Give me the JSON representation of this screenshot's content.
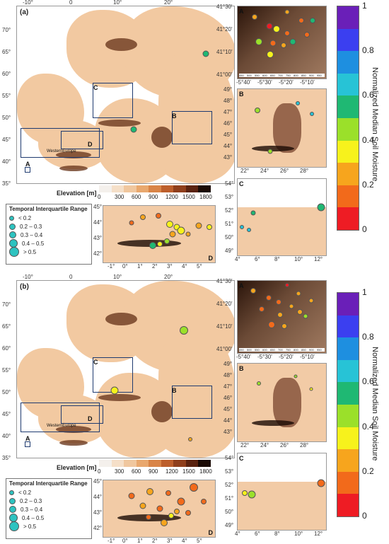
{
  "panels": [
    {
      "label": "(a)",
      "main_ticks_top": [
        "-10°",
        "0",
        "10°",
        "20°"
      ],
      "main_ticks_left": [
        "70°",
        "65°",
        "60°",
        "55°",
        "50°",
        "45°",
        "40°",
        "35°"
      ],
      "region_labels": {
        "A": "A",
        "B": "B",
        "C": "C",
        "D": "D",
        "we": "WesternEurope"
      },
      "elevation_title": "Elevation [m]",
      "elevation_ticks": [
        "0",
        "300",
        "600",
        "900",
        "1200",
        "1500",
        "1800"
      ],
      "legend_title": "Temporal Interquartile Range",
      "legend_items": [
        "< 0.2",
        "0.2 – 0.3",
        "0.3 – 0.4",
        "0.4 – 0.5",
        "> 0.5"
      ],
      "insetA": {
        "letter": "A",
        "left": [
          "41°30'",
          "41°20'",
          "41°10'",
          "41°00'"
        ],
        "bottom": [
          "-5°40'",
          "-5°30'",
          "-5°20'",
          "-5°10'"
        ],
        "scale": [
          "450",
          "500",
          "550",
          "600",
          "650",
          "700",
          "750",
          "800",
          "850",
          "900",
          "950"
        ]
      },
      "insetB": {
        "letter": "B",
        "left": [
          "49°",
          "48°",
          "47°",
          "46°",
          "45°",
          "44°",
          "43°"
        ],
        "bottom": [
          "22°",
          "24°",
          "26°",
          "28°"
        ]
      },
      "insetC": {
        "letter": "C",
        "left": [
          "54°",
          "53°",
          "52°",
          "51°",
          "50°",
          "49°"
        ],
        "bottom": [
          "4°",
          "6°",
          "8°",
          "10°",
          "12°"
        ]
      },
      "insetD": {
        "letter": "D",
        "left": [
          "45°",
          "44°",
          "43°",
          "42°"
        ],
        "bottom": [
          "-1°",
          "0°",
          "1°",
          "2°",
          "3°",
          "4°",
          "5°"
        ]
      }
    },
    {
      "label": "(b)",
      "main_ticks_top": [
        "-10°",
        "0",
        "10°",
        "20°"
      ],
      "main_ticks_left": [
        "70°",
        "65°",
        "60°",
        "55°",
        "50°",
        "45°",
        "40°",
        "35°"
      ],
      "region_labels": {
        "A": "A",
        "B": "B",
        "C": "C",
        "D": "D",
        "we": "WesternEurope"
      },
      "elevation_title": "Elevation [m]",
      "elevation_ticks": [
        "0",
        "300",
        "600",
        "900",
        "1200",
        "1500",
        "1800"
      ],
      "legend_title": "Temporal Interquartile Range",
      "legend_items": [
        "< 0.2",
        "0.2 – 0.3",
        "0.3 – 0.4",
        "0.4 – 0.5",
        "> 0.5"
      ],
      "insetA": {
        "letter": "A",
        "left": [
          "41°30'",
          "41°20'",
          "41°10'",
          "41°00'"
        ],
        "bottom": [
          "-5°40'",
          "-5°30'",
          "-5°20'",
          "-5°10'"
        ],
        "scale": [
          "450",
          "500",
          "550",
          "600",
          "650",
          "700",
          "750",
          "800",
          "850",
          "900",
          "950"
        ]
      },
      "insetB": {
        "letter": "B",
        "left": [
          "49°",
          "48°",
          "47°",
          "46°",
          "45°",
          "44°",
          "43°"
        ],
        "bottom": [
          "22°",
          "24°",
          "26°",
          "28°"
        ]
      },
      "insetC": {
        "letter": "C",
        "left": [
          "54°",
          "53°",
          "52°",
          "51°",
          "50°",
          "49°"
        ],
        "bottom": [
          "4°",
          "6°",
          "8°",
          "10°",
          "12°"
        ]
      },
      "insetD": {
        "letter": "D",
        "left": [
          "45°",
          "44°",
          "43°",
          "42°"
        ],
        "bottom": [
          "-1°",
          "0°",
          "1°",
          "2°",
          "3°",
          "4°",
          "5°"
        ]
      }
    }
  ],
  "colorbar": {
    "title": "Normalized Median Soil Moisture",
    "ticks": [
      "1",
      "0.8",
      "0.6",
      "0.4",
      "0.2",
      "0"
    ],
    "colors": [
      "#6a1fb8",
      "#3b3ff0",
      "#1e8fe0",
      "#27c3d6",
      "#1fb873",
      "#9be02a",
      "#f7f21c",
      "#f7a51d",
      "#f26a1b",
      "#ee1c24"
    ]
  },
  "elevation_colors": [
    "#f4f0ec",
    "#f5dfc8",
    "#f0c79e",
    "#e9a86e",
    "#d98447",
    "#bd5f2c",
    "#8f3f1c",
    "#5a2310",
    "#1a0a04"
  ]
}
